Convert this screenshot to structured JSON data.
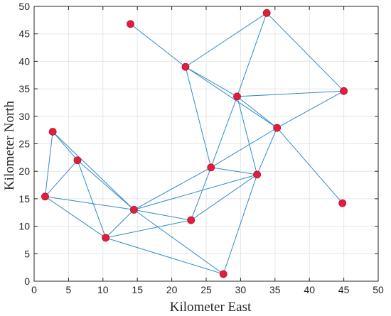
{
  "chart_data": {
    "type": "network",
    "xlabel": "Kilometer East",
    "ylabel": "Kilometer North",
    "xlim": [
      0,
      50
    ],
    "ylim": [
      0,
      50
    ],
    "xticks": [
      0,
      5,
      10,
      15,
      20,
      25,
      30,
      35,
      40,
      45,
      50
    ],
    "yticks": [
      0,
      5,
      10,
      15,
      20,
      25,
      30,
      35,
      40,
      45,
      50
    ],
    "grid": true,
    "colors": {
      "edge": "#2f8ccc",
      "node_fill": "#e31d3b",
      "node_edge": "#b0102a"
    },
    "nodes": [
      {
        "id": "A",
        "x": 14.0,
        "y": 46.8
      },
      {
        "id": "B",
        "x": 33.8,
        "y": 48.8
      },
      {
        "id": "C",
        "x": 22.0,
        "y": 39.0
      },
      {
        "id": "D",
        "x": 29.5,
        "y": 33.6
      },
      {
        "id": "E",
        "x": 45.0,
        "y": 34.6
      },
      {
        "id": "F",
        "x": 35.3,
        "y": 27.9
      },
      {
        "id": "G",
        "x": 2.7,
        "y": 27.2
      },
      {
        "id": "H",
        "x": 6.3,
        "y": 22.0
      },
      {
        "id": "I",
        "x": 25.7,
        "y": 20.7
      },
      {
        "id": "J",
        "x": 32.4,
        "y": 19.4
      },
      {
        "id": "K",
        "x": 1.6,
        "y": 15.4
      },
      {
        "id": "L",
        "x": 44.8,
        "y": 14.2
      },
      {
        "id": "M",
        "x": 14.5,
        "y": 13.0
      },
      {
        "id": "N",
        "x": 22.8,
        "y": 11.1
      },
      {
        "id": "O",
        "x": 10.4,
        "y": 7.9
      },
      {
        "id": "P",
        "x": 27.5,
        "y": 1.3
      }
    ],
    "edges": [
      [
        "A",
        "C"
      ],
      [
        "C",
        "B"
      ],
      [
        "B",
        "D"
      ],
      [
        "B",
        "E"
      ],
      [
        "C",
        "D"
      ],
      [
        "C",
        "F"
      ],
      [
        "D",
        "E"
      ],
      [
        "D",
        "F"
      ],
      [
        "D",
        "I"
      ],
      [
        "D",
        "J"
      ],
      [
        "E",
        "F"
      ],
      [
        "F",
        "J"
      ],
      [
        "F",
        "I"
      ],
      [
        "F",
        "L"
      ],
      [
        "C",
        "I"
      ],
      [
        "I",
        "J"
      ],
      [
        "I",
        "N"
      ],
      [
        "I",
        "M"
      ],
      [
        "J",
        "M"
      ],
      [
        "J",
        "N"
      ],
      [
        "J",
        "P"
      ],
      [
        "G",
        "K"
      ],
      [
        "G",
        "H"
      ],
      [
        "G",
        "M"
      ],
      [
        "H",
        "K"
      ],
      [
        "H",
        "M"
      ],
      [
        "H",
        "O"
      ],
      [
        "K",
        "M"
      ],
      [
        "K",
        "O"
      ],
      [
        "M",
        "O"
      ],
      [
        "M",
        "N"
      ],
      [
        "M",
        "P"
      ],
      [
        "O",
        "N"
      ],
      [
        "O",
        "P"
      ]
    ]
  }
}
